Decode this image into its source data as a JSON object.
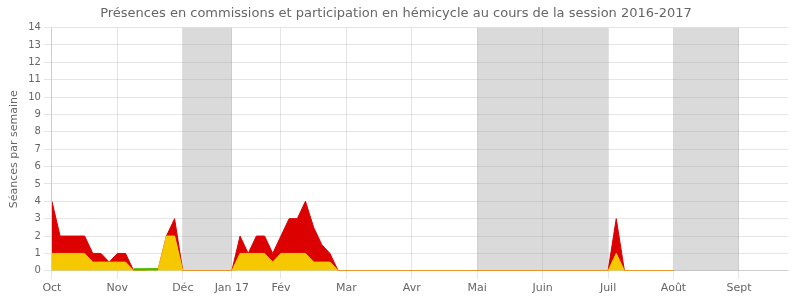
{
  "chart_data": {
    "type": "area",
    "title": "Présences en commissions et participation en hémicycle au cours de la session 2016-2017",
    "y_label": "Séances par semaine",
    "stacked": true,
    "grid": true,
    "xlim": [
      0,
      45
    ],
    "xticks": [
      {
        "value": 0,
        "label": "Oct"
      },
      {
        "value": 4,
        "label": "Nov"
      },
      {
        "value": 8,
        "label": "Déc"
      },
      {
        "value": 11,
        "label": "Jan 17"
      },
      {
        "value": 14,
        "label": "Fév"
      },
      {
        "value": 18,
        "label": "Mar"
      },
      {
        "value": 22,
        "label": "Avr"
      },
      {
        "value": 26,
        "label": "Mai"
      },
      {
        "value": 30,
        "label": "Juin"
      },
      {
        "value": 34,
        "label": "Juil"
      },
      {
        "value": 38,
        "label": "Août"
      },
      {
        "value": 42,
        "label": "Sept"
      }
    ],
    "ylim": [
      0,
      14
    ],
    "yticks": [
      0,
      1,
      2,
      3,
      4,
      5,
      6,
      7,
      8,
      9,
      10,
      11,
      12,
      13,
      14
    ],
    "shade_regions": [
      [
        8,
        11
      ],
      [
        26,
        30
      ],
      [
        30,
        34
      ],
      [
        38,
        42
      ]
    ],
    "series": [
      {
        "color": "#f5c800",
        "x": [
          0,
          0.5,
          1,
          1.5,
          2,
          2.5,
          3,
          3.5,
          4,
          4.5,
          5,
          5.5,
          6,
          6.5,
          7,
          7.5,
          8,
          11,
          11.5,
          12,
          12.5,
          13,
          13.5,
          14,
          14.5,
          15,
          15.5,
          16,
          16.5,
          17,
          17.5,
          18,
          22,
          26,
          34,
          34.5,
          35,
          38
        ],
        "values": [
          1,
          1,
          1,
          1,
          1,
          0.5,
          0.5,
          0.5,
          0.5,
          0.5,
          0.0,
          0.0,
          0.1,
          0.1,
          2,
          2,
          0,
          0,
          1,
          1,
          1,
          1,
          0.5,
          1,
          1,
          1,
          1,
          0.5,
          0.5,
          0.5,
          0,
          0,
          0,
          0,
          0,
          1,
          0,
          0
        ]
      },
      {
        "color": "#dd0000",
        "x": [
          0,
          0.5,
          1,
          1.5,
          2,
          2.5,
          3,
          3.5,
          4,
          4.5,
          5,
          5.5,
          6,
          6.5,
          7,
          7.5,
          8,
          11,
          11.5,
          12,
          12.5,
          13,
          13.5,
          14,
          14.5,
          15,
          15.5,
          16,
          16.5,
          17,
          17.5,
          18,
          22,
          26,
          34,
          34.5,
          35,
          38
        ],
        "values": [
          3,
          1,
          1,
          1,
          1,
          0.5,
          0.5,
          0,
          0.5,
          0.5,
          0.0,
          0.0,
          0.0,
          0.0,
          0,
          1,
          0,
          0,
          1,
          0,
          1,
          1,
          0.5,
          1,
          2,
          2,
          3,
          2,
          1,
          0.5,
          0,
          0,
          0,
          0,
          0,
          2,
          0,
          0
        ]
      },
      {
        "color": "#44bb00",
        "stacked": false,
        "x": [
          5.0,
          5.5,
          6.0,
          6.5
        ],
        "values": [
          0.12,
          0.12,
          0.12,
          0.12
        ]
      }
    ]
  }
}
